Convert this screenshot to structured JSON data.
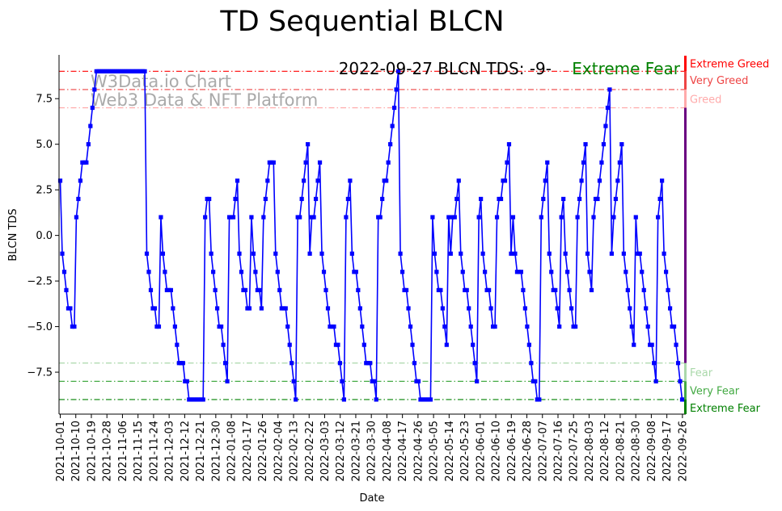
{
  "chart_data": {
    "type": "line",
    "title": "TD Sequential BLCN",
    "xlabel": "Date",
    "ylabel": "BLCN TDS",
    "ylim": [
      -9.8,
      9.9
    ],
    "grid": false,
    "legend": "none",
    "watermark": [
      "W3Data.io Chart",
      "Web3 Data & NFT Platform"
    ],
    "annotation": {
      "text": "2022-09-27 BLCN TDS: -9-",
      "sentiment": "Extreme Fear",
      "sentiment_color": "#008000"
    },
    "y_ticks": [
      -7.5,
      -5.0,
      -2.5,
      0.0,
      2.5,
      5.0,
      7.5
    ],
    "y_tick_labels": [
      "−7.5",
      "−5.0",
      "−2.5",
      "0.0",
      "2.5",
      "5.0",
      "7.5"
    ],
    "x_tick_labels": [
      "2021-10-01",
      "2021-10-10",
      "2021-10-19",
      "2021-10-28",
      "2021-11-06",
      "2021-11-15",
      "2021-11-24",
      "2021-12-03",
      "2021-12-12",
      "2021-12-21",
      "2021-12-30",
      "2022-01-08",
      "2022-01-17",
      "2022-01-26",
      "2022-02-04",
      "2022-02-13",
      "2022-02-22",
      "2022-03-03",
      "2022-03-12",
      "2022-03-21",
      "2022-03-30",
      "2022-04-08",
      "2022-04-17",
      "2022-04-26",
      "2022-05-05",
      "2022-05-14",
      "2022-05-23",
      "2022-06-01",
      "2022-06-10",
      "2022-06-19",
      "2022-06-28",
      "2022-07-07",
      "2022-07-16",
      "2022-07-25",
      "2022-08-03",
      "2022-08-12",
      "2022-08-21",
      "2022-08-30",
      "2022-09-08",
      "2022-09-17",
      "2022-09-26"
    ],
    "series": [
      {
        "color": "#0000ff",
        "start_date": "2021-10-01",
        "end_date": "2022-09-27",
        "values": [
          3,
          -1,
          -2,
          -3,
          -4,
          -4,
          -5,
          -5,
          1,
          2,
          3,
          4,
          4,
          4,
          5,
          6,
          7,
          8,
          9,
          9,
          9,
          9,
          9,
          9,
          9,
          9,
          9,
          9,
          9,
          9,
          9,
          9,
          9,
          9,
          9,
          9,
          9,
          9,
          9,
          9,
          9,
          9,
          9,
          -1,
          -2,
          -3,
          -4,
          -4,
          -5,
          -5,
          1,
          -1,
          -2,
          -3,
          -3,
          -3,
          -4,
          -5,
          -6,
          -7,
          -7,
          -7,
          -8,
          -8,
          -9,
          -9,
          -9,
          -9,
          -9,
          -9,
          -9,
          -9,
          1,
          2,
          2,
          -1,
          -2,
          -3,
          -4,
          -5,
          -5,
          -6,
          -7,
          -8,
          1,
          1,
          1,
          2,
          3,
          -1,
          -2,
          -3,
          -3,
          -4,
          -4,
          1,
          -1,
          -2,
          -3,
          -3,
          -4,
          1,
          2,
          3,
          4,
          4,
          4,
          -1,
          -2,
          -3,
          -4,
          -4,
          -4,
          -5,
          -6,
          -7,
          -8,
          -9,
          1,
          1,
          2,
          3,
          4,
          5,
          -1,
          1,
          1,
          2,
          3,
          4,
          -1,
          -2,
          -3,
          -4,
          -5,
          -5,
          -5,
          -6,
          -6,
          -7,
          -8,
          -9,
          1,
          2,
          3,
          -1,
          -2,
          -2,
          -3,
          -4,
          -5,
          -6,
          -7,
          -7,
          -7,
          -8,
          -8,
          -9,
          1,
          1,
          2,
          3,
          3,
          4,
          5,
          6,
          7,
          8,
          9,
          -1,
          -2,
          -3,
          -3,
          -4,
          -5,
          -6,
          -7,
          -8,
          -8,
          -9,
          -9,
          -9,
          -9,
          -9,
          -9,
          1,
          -1,
          -2,
          -3,
          -3,
          -4,
          -5,
          -6,
          1,
          -1,
          1,
          1,
          2,
          3,
          -1,
          -2,
          -3,
          -3,
          -4,
          -5,
          -6,
          -7,
          -8,
          1,
          2,
          -1,
          -2,
          -3,
          -3,
          -4,
          -5,
          -5,
          1,
          2,
          2,
          3,
          3,
          4,
          5,
          -1,
          1,
          -1,
          -2,
          -2,
          -2,
          -3,
          -4,
          -5,
          -6,
          -7,
          -8,
          -8,
          -9,
          -9,
          1,
          2,
          3,
          4,
          -1,
          -2,
          -3,
          -3,
          -4,
          -5,
          1,
          2,
          -1,
          -2,
          -3,
          -4,
          -5,
          -5,
          1,
          2,
          3,
          4,
          5,
          -1,
          -2,
          -3,
          1,
          2,
          2,
          3,
          4,
          5,
          6,
          7,
          8,
          -1,
          1,
          2,
          3,
          4,
          5,
          -1,
          -2,
          -3,
          -4,
          -5,
          -6,
          1,
          -1,
          -1,
          -2,
          -3,
          -4,
          -5,
          -6,
          -6,
          -7,
          -8,
          1,
          2,
          3,
          -1,
          -2,
          -3,
          -4,
          -5,
          -5,
          -6,
          -7,
          -8,
          -9,
          -9
        ]
      }
    ],
    "sentiment_bands": [
      {
        "label": "Extreme Greed",
        "level": 9,
        "color": "#ff0000",
        "line_style": "dashdot"
      },
      {
        "label": "Very Greed",
        "level": 8,
        "color": "#ee4444",
        "line_style": "dashdot"
      },
      {
        "label": "Greed",
        "level": 7,
        "color": "#ffaaaa",
        "line_style": "dashdot"
      },
      {
        "label": "Fear",
        "level": -7,
        "color": "#aad8aa",
        "line_style": "dashdot"
      },
      {
        "label": "Very Fear",
        "level": -8,
        "color": "#44aa44",
        "line_style": "dashdot"
      },
      {
        "label": "Extreme Fear",
        "level": -9,
        "color": "#008000",
        "line_style": "dashdot"
      }
    ]
  }
}
